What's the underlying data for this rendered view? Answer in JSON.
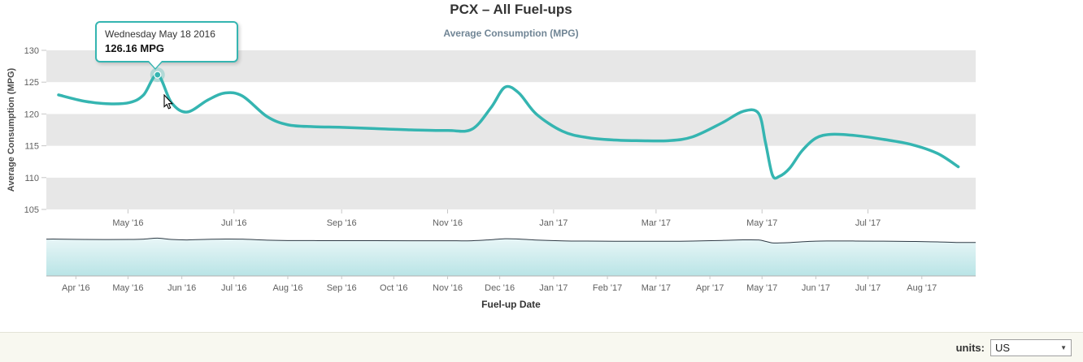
{
  "chart_data": {
    "type": "line",
    "title": "PCX – All Fuel-ups",
    "subtitle": "Average Consumption (MPG)",
    "xlabel": "Fuel-up Date",
    "ylabel": "Average Consumption (MPG)",
    "ylim": [
      105,
      130
    ],
    "y_ticks": [
      105,
      110,
      115,
      120,
      125,
      130
    ],
    "x_range": [
      "2016-03-15",
      "2017-09-01"
    ],
    "grid": "alternating-horizontal-bands",
    "legend": "none",
    "navigator": true,
    "main_axis_ticks": [
      [
        "May '16",
        "2016-05-01"
      ],
      [
        "Jul '16",
        "2016-07-01"
      ],
      [
        "Sep '16",
        "2016-09-01"
      ],
      [
        "Nov '16",
        "2016-11-01"
      ],
      [
        "Jan '17",
        "2017-01-01"
      ],
      [
        "Mar '17",
        "2017-03-01"
      ],
      [
        "May '17",
        "2017-05-01"
      ],
      [
        "Jul '17",
        "2017-07-01"
      ]
    ],
    "navigator_ticks": [
      [
        "Apr '16",
        "2016-04-01"
      ],
      [
        "May '16",
        "2016-05-01"
      ],
      [
        "Jun '16",
        "2016-06-01"
      ],
      [
        "Jul '16",
        "2016-07-01"
      ],
      [
        "Aug '16",
        "2016-08-01"
      ],
      [
        "Sep '16",
        "2016-09-01"
      ],
      [
        "Oct '16",
        "2016-10-01"
      ],
      [
        "Nov '16",
        "2016-11-01"
      ],
      [
        "Dec '16",
        "2016-12-01"
      ],
      [
        "Jan '17",
        "2017-01-01"
      ],
      [
        "Feb '17",
        "2017-02-01"
      ],
      [
        "Mar '17",
        "2017-03-01"
      ],
      [
        "Apr '17",
        "2017-04-01"
      ],
      [
        "May '17",
        "2017-05-01"
      ],
      [
        "Jun '17",
        "2017-06-01"
      ],
      [
        "Jul '17",
        "2017-07-01"
      ],
      [
        "Aug '17",
        "2017-08-01"
      ]
    ],
    "series": [
      {
        "name": "Average Consumption (MPG)",
        "color": "#35b5b1",
        "points": [
          [
            "2016-03-22",
            123.0
          ],
          [
            "2016-04-06",
            122.0
          ],
          [
            "2016-04-20",
            121.6
          ],
          [
            "2016-05-02",
            121.8
          ],
          [
            "2016-05-10",
            123.0
          ],
          [
            "2016-05-18",
            126.16
          ],
          [
            "2016-05-26",
            121.8
          ],
          [
            "2016-06-04",
            120.3
          ],
          [
            "2016-06-16",
            122.2
          ],
          [
            "2016-06-26",
            123.3
          ],
          [
            "2016-07-06",
            122.8
          ],
          [
            "2016-07-20",
            119.6
          ],
          [
            "2016-08-01",
            118.3
          ],
          [
            "2016-08-16",
            118.0
          ],
          [
            "2016-09-01",
            117.9
          ],
          [
            "2016-09-20",
            117.7
          ],
          [
            "2016-10-10",
            117.5
          ],
          [
            "2016-11-01",
            117.4
          ],
          [
            "2016-11-15",
            117.6
          ],
          [
            "2016-11-26",
            121.0
          ],
          [
            "2016-12-04",
            124.2
          ],
          [
            "2016-12-12",
            123.3
          ],
          [
            "2016-12-22",
            120.0
          ],
          [
            "2017-01-06",
            117.3
          ],
          [
            "2017-01-20",
            116.3
          ],
          [
            "2017-02-05",
            115.9
          ],
          [
            "2017-02-20",
            115.8
          ],
          [
            "2017-03-08",
            115.8
          ],
          [
            "2017-03-22",
            116.4
          ],
          [
            "2017-04-08",
            118.6
          ],
          [
            "2017-04-20",
            120.4
          ],
          [
            "2017-04-29",
            120.1
          ],
          [
            "2017-05-03",
            115.5
          ],
          [
            "2017-05-07",
            110.4
          ],
          [
            "2017-05-11",
            110.2
          ],
          [
            "2017-05-17",
            111.5
          ],
          [
            "2017-05-24",
            114.2
          ],
          [
            "2017-06-01",
            116.2
          ],
          [
            "2017-06-10",
            116.8
          ],
          [
            "2017-06-24",
            116.6
          ],
          [
            "2017-07-10",
            116.0
          ],
          [
            "2017-07-26",
            115.2
          ],
          [
            "2017-08-10",
            113.8
          ],
          [
            "2017-08-22",
            111.7
          ]
        ]
      }
    ],
    "highlighted_point": {
      "date": "2016-05-18",
      "value": 126.16,
      "label": "Wednesday May 18 2016",
      "value_label": "126.16 MPG"
    }
  },
  "theme": {
    "line_color": "#35b5b1",
    "band_color": "#e7e7e7",
    "axis_label_color": "#606060",
    "subtitle_color": "#708595",
    "tooltip_border_color": "#35b5b1",
    "navigator_line_color": "#2e3a45",
    "navigator_fill_top": "#e8f6f7",
    "navigator_fill_bottom": "#b9e4e6",
    "footer_bg": "#f8f8f0",
    "footer_border": "#e3e3d7"
  },
  "footer": {
    "units_label": "units:",
    "units_value": "US"
  }
}
